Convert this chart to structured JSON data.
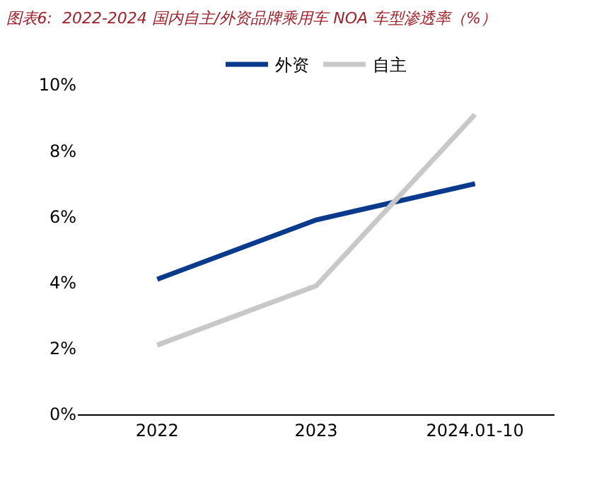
{
  "chart_data": {
    "type": "line",
    "title": "图表6:  2022-2024 国内自主/外资品牌乘用车 NOA 车型渗透率（%）",
    "categories": [
      "2022",
      "2023",
      "2024.01-10"
    ],
    "series": [
      {
        "name": "外资",
        "color": "#0a3a8c",
        "values": [
          4.1,
          5.9,
          7.0
        ]
      },
      {
        "name": "自主",
        "color": "#c8c8c8",
        "values": [
          2.1,
          3.9,
          9.1
        ]
      }
    ],
    "ylim": [
      0,
      10
    ],
    "yticks": [
      {
        "value": 0,
        "label": "0%"
      },
      {
        "value": 2,
        "label": "2%"
      },
      {
        "value": 4,
        "label": "4%"
      },
      {
        "value": 6,
        "label": "6%"
      },
      {
        "value": 8,
        "label": "8%"
      },
      {
        "value": 10,
        "label": "10%"
      }
    ],
    "grid": false,
    "legend": "top",
    "marker": "none",
    "line_style": "solid"
  }
}
